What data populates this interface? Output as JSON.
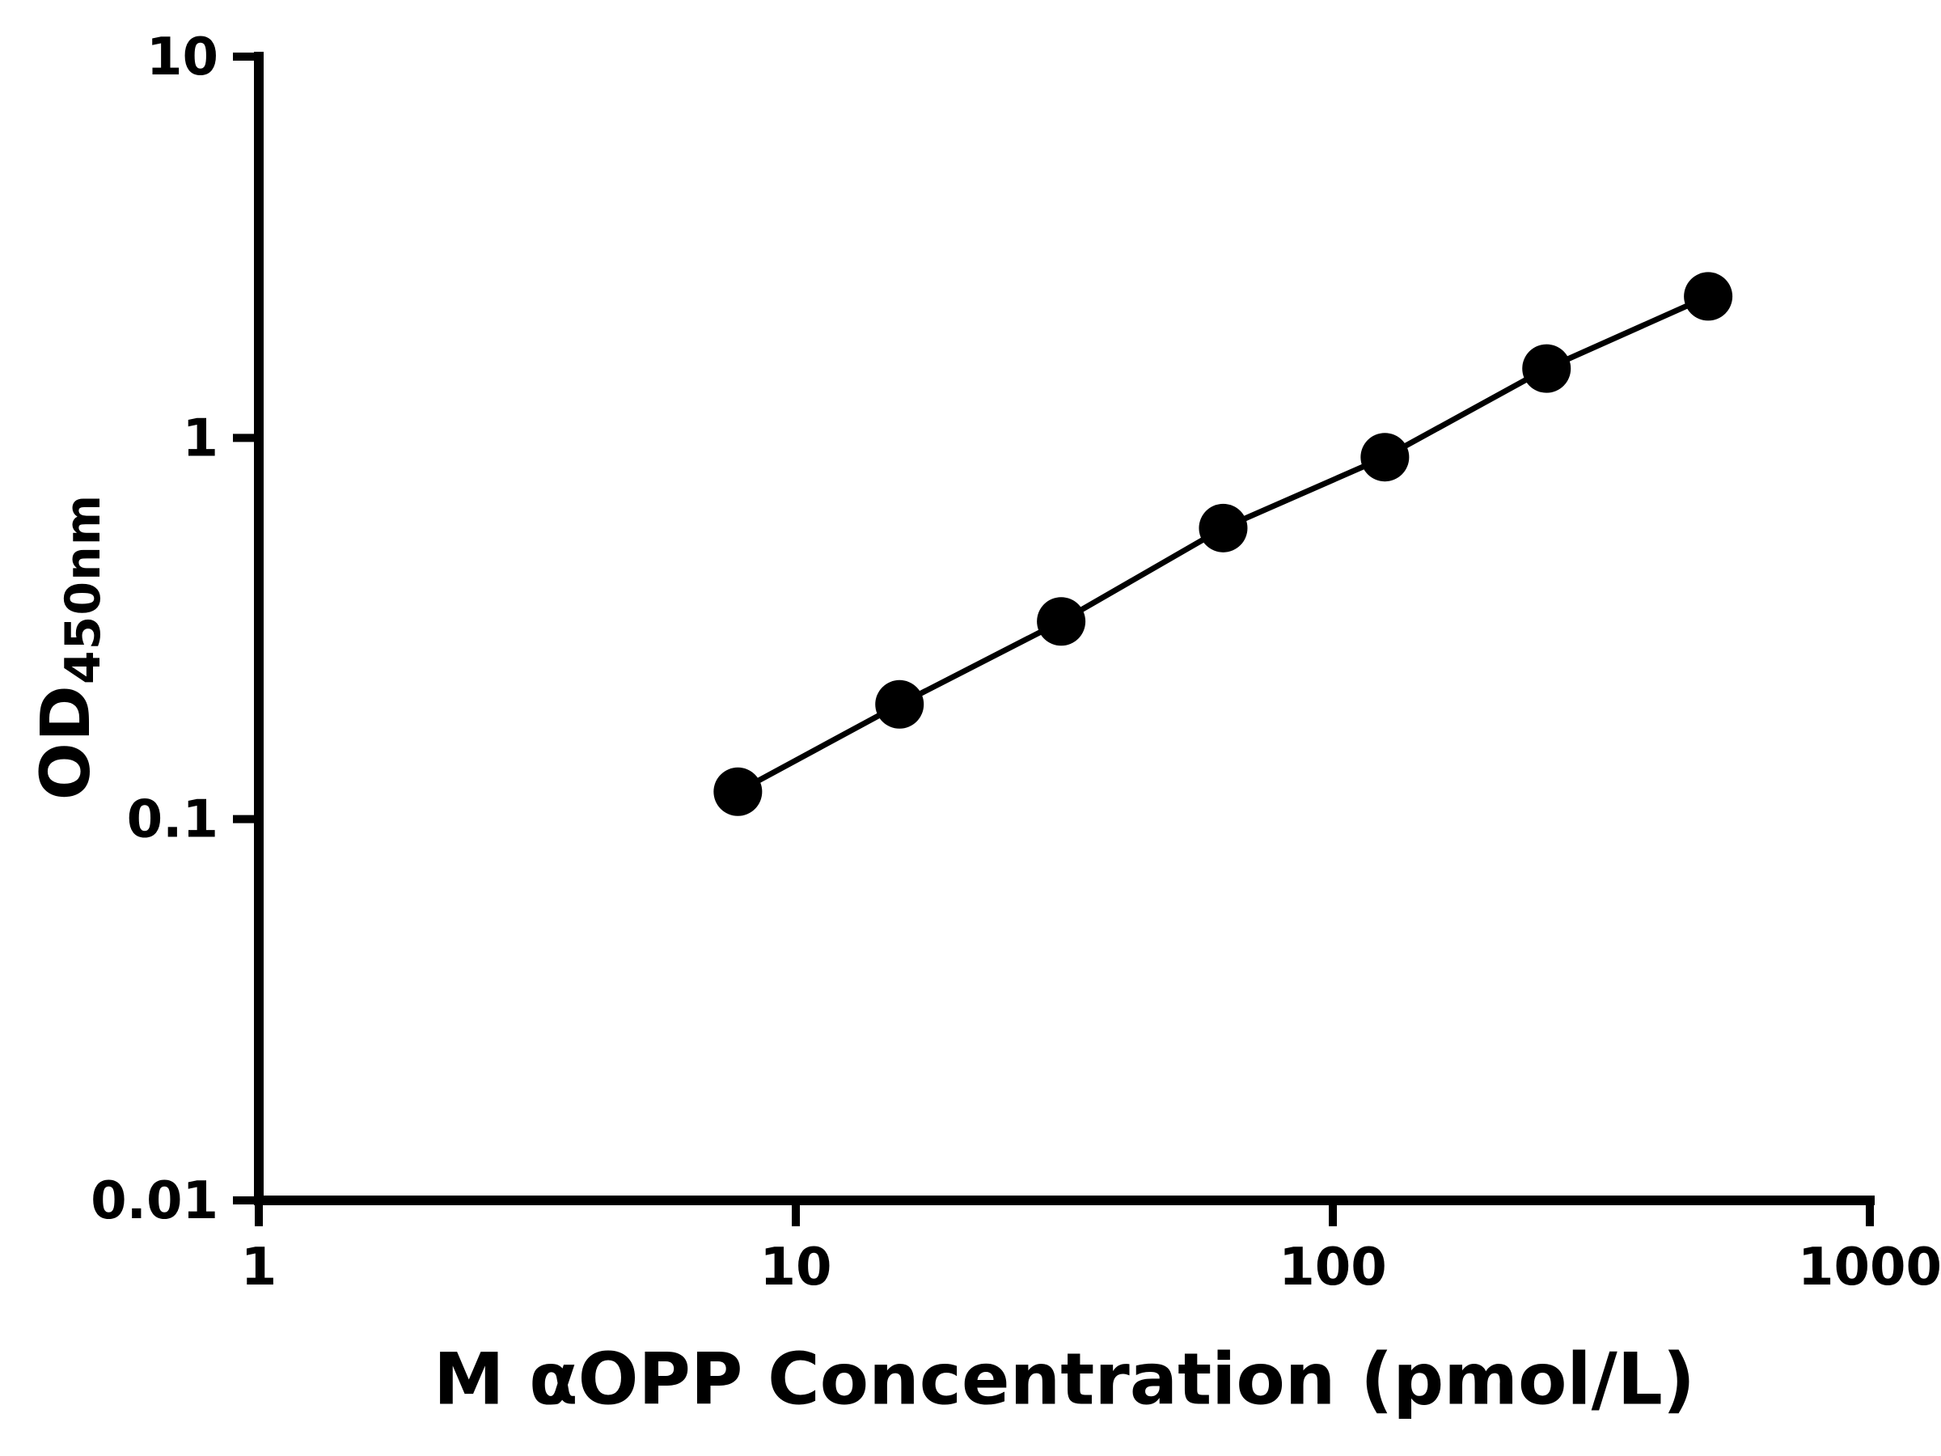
{
  "chart_data": {
    "type": "scatter",
    "title": "",
    "xlabel": "M αOPP Concentration (pmol/L)",
    "ylabel_main": "OD",
    "ylabel_sub": "450nm",
    "x_scale": "log10",
    "y_scale": "log10",
    "xlim": [
      1,
      1000
    ],
    "ylim": [
      0.01,
      10
    ],
    "x_ticks": [
      "1",
      "10",
      "100",
      "1000"
    ],
    "x_tick_values": [
      1,
      10,
      100,
      1000
    ],
    "y_ticks": [
      "0.01",
      "0.1",
      "1",
      "10"
    ],
    "y_tick_values": [
      0.01,
      0.1,
      1,
      10
    ],
    "grid": false,
    "legend": "none",
    "points": [
      {
        "x": 7.8,
        "y": 0.118
      },
      {
        "x": 15.6,
        "y": 0.2
      },
      {
        "x": 31.2,
        "y": 0.33
      },
      {
        "x": 62.5,
        "y": 0.58
      },
      {
        "x": 125,
        "y": 0.89
      },
      {
        "x": 250,
        "y": 1.52
      },
      {
        "x": 500,
        "y": 2.35
      }
    ],
    "marker_color": "#000000",
    "line_color": "#000000",
    "background": "#ffffff"
  }
}
